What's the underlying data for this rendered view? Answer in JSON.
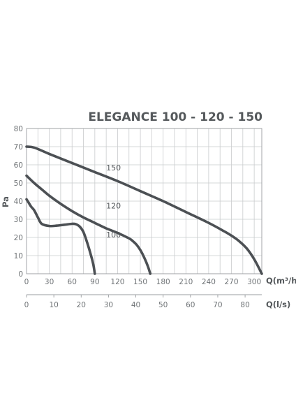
{
  "chart_data": {
    "type": "line",
    "title": "ELEGANCE 100 - 120 - 150",
    "ylabel": "Pa",
    "xlabel": "Q(m³/h)",
    "xlabel_secondary": "Q(l/s)",
    "ylim": [
      0,
      80
    ],
    "xlim": [
      0,
      310
    ],
    "y_ticks": [
      0,
      10,
      20,
      30,
      40,
      50,
      60,
      70,
      80
    ],
    "x_ticks": [
      0,
      30,
      60,
      90,
      120,
      150,
      180,
      210,
      240,
      270,
      300
    ],
    "x_secondary_ticks": [
      0,
      10,
      20,
      30,
      40,
      50,
      60,
      70,
      80
    ],
    "grid": true,
    "series": [
      {
        "name": "100",
        "x": [
          0,
          3,
          6,
          10,
          15,
          20,
          30,
          40,
          50,
          60,
          65,
          70,
          75,
          80,
          85,
          88,
          90
        ],
        "y": [
          41,
          39,
          37,
          35,
          31,
          27.5,
          26.3,
          26.5,
          27,
          27.5,
          27.3,
          26,
          23,
          17,
          10,
          5,
          0
        ]
      },
      {
        "name": "120",
        "x": [
          0,
          10,
          20,
          30,
          45,
          60,
          75,
          90,
          105,
          120,
          135,
          140,
          145,
          150,
          155,
          160,
          163
        ],
        "y": [
          54,
          50,
          46.5,
          43,
          38.5,
          34.5,
          31,
          28,
          25,
          22.5,
          19.5,
          18,
          16,
          13,
          9,
          4,
          0
        ]
      },
      {
        "name": "150",
        "x": [
          0,
          10,
          30,
          60,
          90,
          120,
          150,
          180,
          210,
          240,
          260,
          270,
          280,
          290,
          300,
          310
        ],
        "y": [
          70,
          69.5,
          66,
          61,
          56,
          51,
          45.5,
          40,
          34,
          28,
          23.5,
          21,
          18,
          14,
          8,
          0
        ]
      }
    ]
  }
}
